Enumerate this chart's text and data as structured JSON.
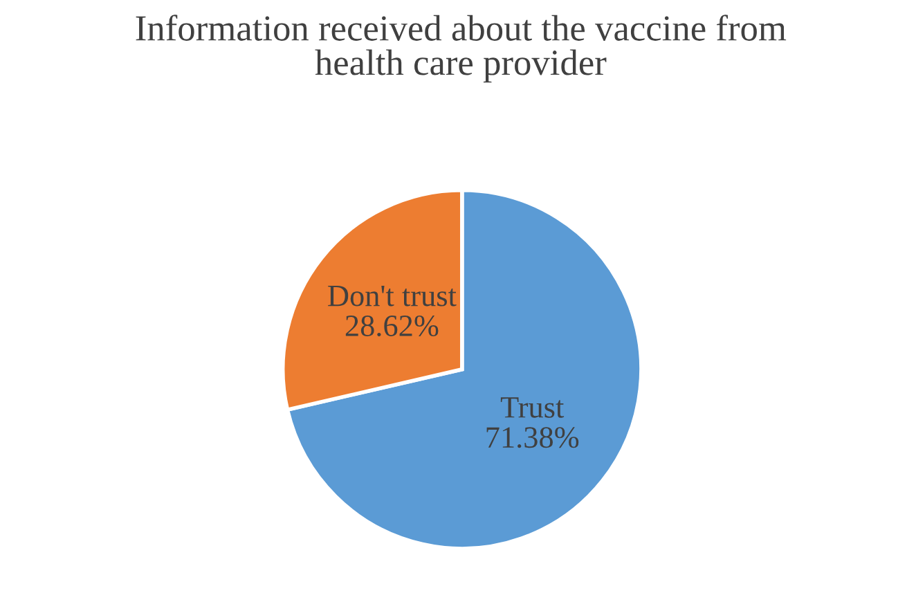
{
  "chart_data": {
    "type": "pie",
    "title": "Information received about the vaccine from\nhealth care provider",
    "categories": [
      "Trust",
      "Don't trust"
    ],
    "values": [
      71.38,
      28.62
    ],
    "value_labels": [
      "71.38%",
      "28.62%"
    ],
    "colors": [
      "#5b9bd5",
      "#ed7d31"
    ]
  }
}
